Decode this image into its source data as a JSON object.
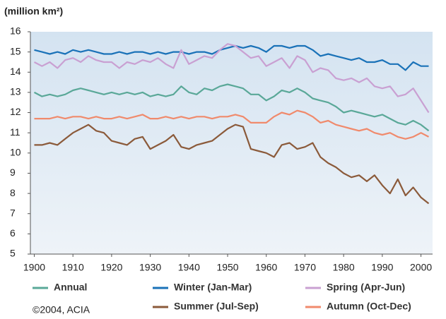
{
  "chart_data": {
    "type": "line",
    "y_label": "(million km²)",
    "source": "©2004, ACIA",
    "x": [
      1900,
      1902,
      1904,
      1906,
      1908,
      1910,
      1912,
      1914,
      1916,
      1918,
      1920,
      1922,
      1924,
      1926,
      1928,
      1930,
      1932,
      1934,
      1936,
      1938,
      1940,
      1942,
      1944,
      1946,
      1948,
      1950,
      1952,
      1954,
      1956,
      1958,
      1960,
      1962,
      1964,
      1966,
      1968,
      1970,
      1972,
      1974,
      1976,
      1978,
      1980,
      1982,
      1984,
      1986,
      1988,
      1990,
      1992,
      1994,
      1996,
      1998,
      2000,
      2002
    ],
    "xlim": [
      1899,
      2003
    ],
    "xticks": [
      1900,
      1910,
      1920,
      1930,
      1940,
      1950,
      1960,
      1970,
      1980,
      1990,
      2000
    ],
    "ylim": [
      5,
      16
    ],
    "yticks": [
      5,
      6,
      7,
      8,
      9,
      10,
      11,
      12,
      13,
      14,
      15,
      16
    ],
    "series": [
      {
        "name": "Annual",
        "color": "#5aa898",
        "values": [
          13.0,
          12.8,
          12.9,
          12.8,
          12.9,
          13.1,
          13.2,
          13.1,
          13.0,
          12.9,
          13.0,
          12.9,
          13.0,
          12.9,
          13.0,
          12.8,
          12.9,
          12.8,
          12.9,
          13.3,
          13.0,
          12.9,
          13.2,
          13.1,
          13.3,
          13.4,
          13.3,
          13.2,
          12.9,
          12.9,
          12.6,
          12.8,
          13.1,
          13.0,
          13.2,
          13.0,
          12.7,
          12.6,
          12.5,
          12.3,
          12.0,
          12.1,
          12.0,
          11.9,
          11.8,
          11.9,
          11.7,
          11.5,
          11.4,
          11.6,
          11.4,
          11.1
        ]
      },
      {
        "name": "Winter (Jan-Mar)",
        "color": "#1a72b8",
        "values": [
          15.1,
          15.0,
          14.9,
          15.0,
          14.9,
          15.1,
          15.0,
          15.1,
          15.0,
          14.9,
          14.9,
          15.0,
          14.9,
          15.0,
          15.0,
          14.9,
          15.0,
          14.9,
          15.0,
          15.0,
          14.9,
          15.0,
          15.0,
          14.9,
          15.1,
          15.2,
          15.3,
          15.2,
          15.3,
          15.2,
          15.0,
          15.3,
          15.3,
          15.2,
          15.3,
          15.3,
          15.1,
          14.8,
          14.9,
          14.8,
          14.7,
          14.6,
          14.7,
          14.5,
          14.5,
          14.6,
          14.4,
          14.4,
          14.1,
          14.5,
          14.3,
          14.3
        ]
      },
      {
        "name": "Spring (Apr-Jun)",
        "color": "#c9a0d2",
        "values": [
          14.5,
          14.3,
          14.5,
          14.2,
          14.6,
          14.7,
          14.5,
          14.8,
          14.6,
          14.5,
          14.5,
          14.2,
          14.5,
          14.4,
          14.6,
          14.5,
          14.7,
          14.4,
          14.2,
          15.1,
          14.4,
          14.6,
          14.8,
          14.7,
          15.1,
          15.4,
          15.3,
          15.0,
          14.7,
          14.8,
          14.3,
          14.5,
          14.7,
          14.2,
          14.8,
          14.6,
          14.0,
          14.2,
          14.1,
          13.7,
          13.6,
          13.7,
          13.5,
          13.7,
          13.3,
          13.2,
          13.3,
          12.8,
          12.9,
          13.2,
          12.6,
          12.0
        ]
      },
      {
        "name": "Summer (Jul-Sep)",
        "color": "#8b5a3a",
        "values": [
          10.4,
          10.4,
          10.5,
          10.4,
          10.7,
          11.0,
          11.2,
          11.4,
          11.1,
          11.0,
          10.6,
          10.5,
          10.4,
          10.7,
          10.8,
          10.2,
          10.4,
          10.6,
          10.9,
          10.3,
          10.2,
          10.4,
          10.5,
          10.6,
          10.9,
          11.2,
          11.4,
          11.3,
          10.2,
          10.1,
          10.0,
          9.8,
          10.4,
          10.5,
          10.2,
          10.3,
          10.5,
          9.8,
          9.5,
          9.3,
          9.0,
          8.8,
          8.9,
          8.6,
          8.9,
          8.4,
          8.0,
          8.7,
          7.9,
          8.3,
          7.8,
          7.5
        ]
      },
      {
        "name": "Autumn (Oct-Dec)",
        "color": "#f08a6c",
        "values": [
          11.7,
          11.7,
          11.7,
          11.8,
          11.7,
          11.8,
          11.8,
          11.7,
          11.8,
          11.7,
          11.7,
          11.8,
          11.7,
          11.8,
          11.9,
          11.7,
          11.7,
          11.8,
          11.7,
          11.8,
          11.7,
          11.8,
          11.8,
          11.7,
          11.8,
          11.8,
          11.9,
          11.8,
          11.5,
          11.5,
          11.5,
          11.8,
          12.0,
          11.9,
          12.1,
          12.0,
          11.8,
          11.5,
          11.6,
          11.4,
          11.3,
          11.2,
          11.1,
          11.2,
          11.0,
          10.9,
          11.0,
          10.8,
          10.7,
          10.8,
          11.0,
          10.8
        ]
      }
    ]
  }
}
